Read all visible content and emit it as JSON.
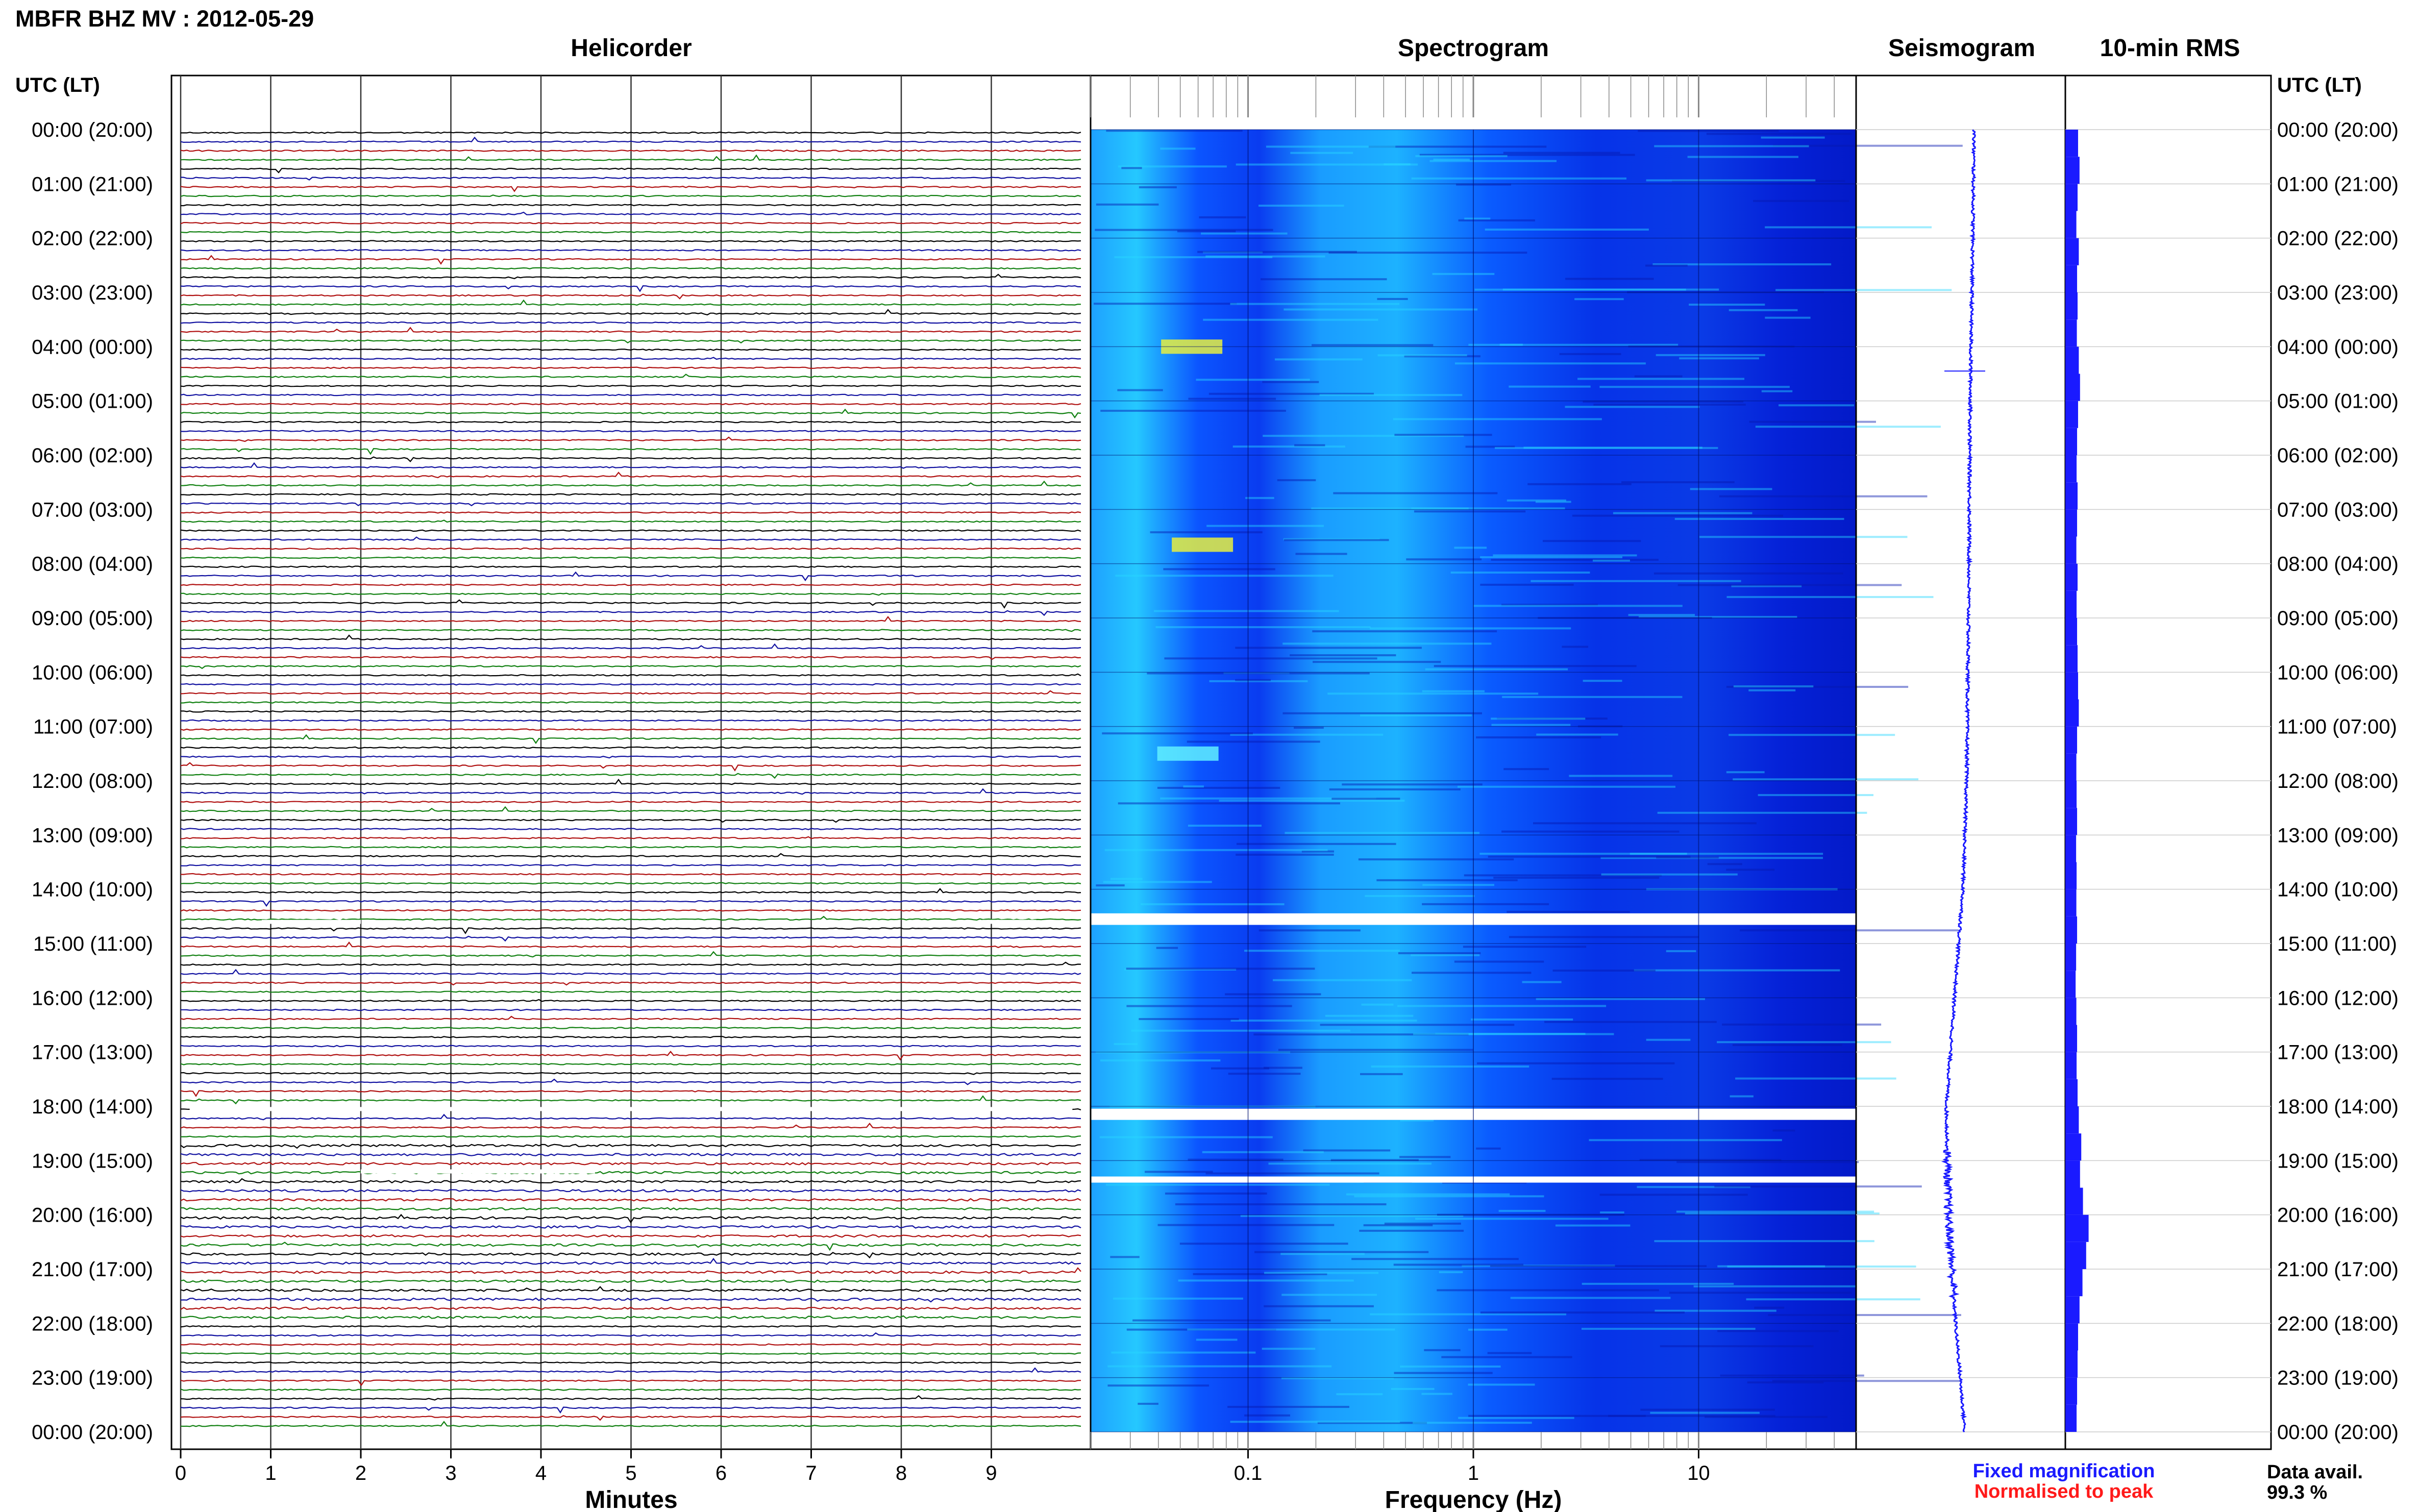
{
  "figure": {
    "title": "MBFR BHZ MV : 2012-05-29",
    "time_axis_label_left": "UTC (LT)",
    "time_axis_label_right": "UTC (LT)"
  },
  "panels": {
    "helicorder": {
      "title": "Helicorder",
      "xlabel": "Minutes"
    },
    "spectrogram": {
      "title": "Spectrogram",
      "xlabel": "Frequency (Hz)"
    },
    "seismogram": {
      "title": "Seismogram"
    },
    "rms": {
      "title": "10-min RMS"
    }
  },
  "legend": {
    "fixed": "Fixed magnification",
    "normalised": "Normalised to peak",
    "fixed_color": "#1a1aff",
    "normalised_color": "#ff1a1a"
  },
  "data_availability": {
    "label": "Data avail.",
    "value": "99.3 %"
  },
  "chart_data": [
    {
      "type": "line",
      "panel": "helicorder",
      "title": "Helicorder",
      "xlabel": "Minutes",
      "x_ticks": [
        "0",
        "1",
        "2",
        "3",
        "4",
        "5",
        "6",
        "7",
        "8",
        "9"
      ],
      "xlim": [
        0,
        10
      ],
      "rows_per_hour": 6,
      "trace_colors": [
        "#000000",
        "#1010a0",
        "#b01010",
        "#108010"
      ],
      "data_gaps": [
        {
          "hour": 14.6,
          "from_min": 0.9,
          "to_min": 2.0
        },
        {
          "hour": 14.6,
          "from_min": 8.9,
          "to_min": 9.5
        },
        {
          "hour": 18.05,
          "from_min": 0.1,
          "to_min": 9.9
        },
        {
          "hour": 19.2,
          "from_min": 2.0,
          "to_min": 4.6
        }
      ]
    },
    {
      "type": "heatmap",
      "panel": "spectrogram",
      "title": "Spectrogram",
      "xlabel": "Frequency (Hz)",
      "x_scale": "log",
      "x_ticks": [
        "0.1",
        "1",
        "10"
      ],
      "xlim": [
        0.02,
        50
      ],
      "colormap": [
        "#0000ff",
        "#00aaff",
        "#00ffff",
        "#ffff00"
      ],
      "gaps_hours": [
        14.5,
        14.6,
        18.1,
        19.35
      ]
    },
    {
      "type": "line",
      "panel": "seismogram",
      "title": "Seismogram",
      "series": [
        {
          "hours": [
            0,
            2,
            4,
            6,
            8,
            10,
            12,
            14,
            16,
            18,
            20,
            22,
            24
          ],
          "offset": [
            0.2,
            0.18,
            0.15,
            0.13,
            0.12,
            0.1,
            0.08,
            0.02,
            -0.12,
            -0.25,
            -0.22,
            -0.1,
            0.05
          ]
        }
      ]
    },
    {
      "type": "bar",
      "panel": "rms",
      "title": "10-min RMS",
      "orientation": "horizontal",
      "hour_start": 0,
      "hour_step": 0.5,
      "values": [
        0.52,
        0.58,
        0.5,
        0.45,
        0.55,
        0.48,
        0.5,
        0.47,
        0.55,
        0.6,
        0.52,
        0.48,
        0.46,
        0.5,
        0.48,
        0.45,
        0.5,
        0.46,
        0.48,
        0.5,
        0.52,
        0.55,
        0.48,
        0.45,
        0.46,
        0.48,
        0.44,
        0.46,
        0.45,
        0.48,
        0.44,
        0.42,
        0.45,
        0.48,
        0.46,
        0.5,
        0.55,
        0.65,
        0.6,
        0.72,
        0.95,
        0.85,
        0.7,
        0.58,
        0.52,
        0.5,
        0.48,
        0.46
      ]
    }
  ],
  "time_axis": {
    "hour_labels": [
      "00:00 (20:00)",
      "01:00 (21:00)",
      "02:00 (22:00)",
      "03:00 (23:00)",
      "04:00 (00:00)",
      "05:00 (01:00)",
      "06:00 (02:00)",
      "07:00 (03:00)",
      "08:00 (04:00)",
      "09:00 (05:00)",
      "10:00 (06:00)",
      "11:00 (07:00)",
      "12:00 (08:00)",
      "13:00 (09:00)",
      "14:00 (10:00)",
      "15:00 (11:00)",
      "16:00 (12:00)",
      "17:00 (13:00)",
      "18:00 (14:00)",
      "19:00 (15:00)",
      "20:00 (16:00)",
      "21:00 (17:00)",
      "22:00 (18:00)",
      "23:00 (19:00)",
      "00:00 (20:00)"
    ]
  }
}
